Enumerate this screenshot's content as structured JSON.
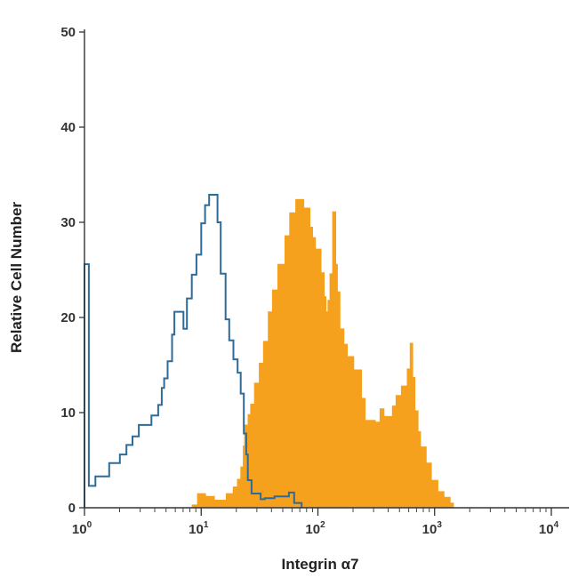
{
  "chart_data": {
    "type": "histogram",
    "xlabel": "Integrin α7",
    "ylabel": "Relative Cell Number",
    "x_scale": "log",
    "xlim": [
      1,
      10000
    ],
    "ylim": [
      0,
      50
    ],
    "x_ticks": [
      {
        "value": 1,
        "base": "10",
        "exp": "0"
      },
      {
        "value": 10,
        "base": "10",
        "exp": "1"
      },
      {
        "value": 100,
        "base": "10",
        "exp": "2"
      },
      {
        "value": 1000,
        "base": "10",
        "exp": "3"
      },
      {
        "value": 10000,
        "base": "10",
        "exp": "4"
      }
    ],
    "y_ticks": [
      0,
      10,
      20,
      30,
      40,
      50
    ],
    "series": [
      {
        "style": "outline",
        "color": "#2e6b96",
        "points": [
          [
            1.0,
            25.6
          ],
          [
            1.09,
            2.3
          ],
          [
            1.24,
            3.3
          ],
          [
            1.63,
            4.7
          ],
          [
            2.01,
            5.6
          ],
          [
            2.29,
            6.6
          ],
          [
            2.58,
            7.5
          ],
          [
            2.92,
            8.7
          ],
          [
            3.75,
            9.7
          ],
          [
            4.28,
            10.8
          ],
          [
            4.59,
            12.6
          ],
          [
            4.82,
            13.6
          ],
          [
            5.16,
            15.4
          ],
          [
            5.63,
            18.2
          ],
          [
            5.89,
            20.6
          ],
          [
            7.05,
            18.8
          ],
          [
            7.55,
            22.0
          ],
          [
            8.31,
            24.5
          ],
          [
            9.11,
            26.6
          ],
          [
            10.0,
            29.9
          ],
          [
            10.8,
            31.8
          ],
          [
            11.7,
            32.9
          ],
          [
            13.8,
            30.0
          ],
          [
            14.7,
            24.6
          ],
          [
            16.2,
            19.8
          ],
          [
            17.4,
            17.6
          ],
          [
            18.9,
            15.6
          ],
          [
            20.5,
            14.2
          ],
          [
            21.8,
            12.0
          ],
          [
            23.2,
            7.8
          ],
          [
            24.3,
            5.6
          ],
          [
            25.1,
            2.9
          ],
          [
            27.0,
            1.5
          ],
          [
            32.3,
            0.9
          ],
          [
            35.0,
            1.0
          ],
          [
            42.5,
            1.2
          ],
          [
            56.4,
            1.6
          ],
          [
            62.6,
            0.5
          ],
          [
            72.5,
            0.0
          ]
        ]
      },
      {
        "style": "filled",
        "color": "#f5a11e",
        "points": [
          [
            8.36,
            0.3
          ],
          [
            9.28,
            1.5
          ],
          [
            10.9,
            1.2
          ],
          [
            13.0,
            0.8
          ],
          [
            16.4,
            1.5
          ],
          [
            18.8,
            2.2
          ],
          [
            20.4,
            3.0
          ],
          [
            21.8,
            4.3
          ],
          [
            22.9,
            6.5
          ],
          [
            23.5,
            8.7
          ],
          [
            25.2,
            9.8
          ],
          [
            26.5,
            10.9
          ],
          [
            28.6,
            13.1
          ],
          [
            31.4,
            15.2
          ],
          [
            34.1,
            17.5
          ],
          [
            37.5,
            20.6
          ],
          [
            40.7,
            22.9
          ],
          [
            45.3,
            25.6
          ],
          [
            52.2,
            28.6
          ],
          [
            57.2,
            31.0
          ],
          [
            64.5,
            32.4
          ],
          [
            75.8,
            31.5
          ],
          [
            85.6,
            29.5
          ],
          [
            90.2,
            28.4
          ],
          [
            95.4,
            27.2
          ],
          [
            106.5,
            24.7
          ],
          [
            113.2,
            22.2
          ],
          [
            117.6,
            20.6
          ],
          [
            121.9,
            21.8
          ],
          [
            126.7,
            24.6
          ],
          [
            133.6,
            31.1
          ],
          [
            142.3,
            25.6
          ],
          [
            147.0,
            22.7
          ],
          [
            154.9,
            18.8
          ],
          [
            167.1,
            17.2
          ],
          [
            178.6,
            15.9
          ],
          [
            203.1,
            14.5
          ],
          [
            236.6,
            11.5
          ],
          [
            254.5,
            9.2
          ],
          [
            310.8,
            9.0
          ],
          [
            340.1,
            10.4
          ],
          [
            368.7,
            9.6
          ],
          [
            434.4,
            10.7
          ],
          [
            466.5,
            11.8
          ],
          [
            518.8,
            12.8
          ],
          [
            582.3,
            14.6
          ],
          [
            616.9,
            17.3
          ],
          [
            649.8,
            13.7
          ],
          [
            679.3,
            10.2
          ],
          [
            722.1,
            8.0
          ],
          [
            758.1,
            6.4
          ],
          [
            848.7,
            4.7
          ],
          [
            939.5,
            2.9
          ],
          [
            1067.9,
            1.7
          ],
          [
            1205.5,
            1.1
          ],
          [
            1361.4,
            0.5
          ],
          [
            1451.9,
            0.0
          ]
        ]
      }
    ]
  }
}
